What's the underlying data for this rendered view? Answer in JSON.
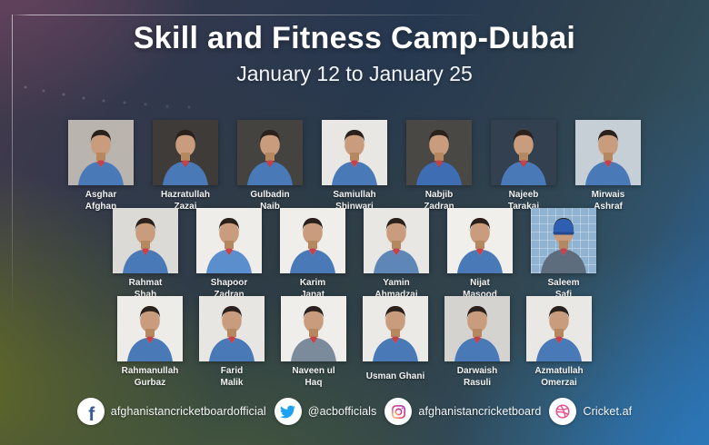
{
  "header": {
    "title": "Skill and Fitness Camp-Dubai",
    "subtitle": "January 12 to January 25"
  },
  "players": {
    "rows": [
      [
        {
          "name_lines": [
            "Asghar",
            "Afghan"
          ],
          "photo_bg": "#b9b4ae",
          "jersey": "#4a79b8"
        },
        {
          "name_lines": [
            "Hazratullah",
            "Zazai"
          ],
          "photo_bg": "#3f3b38",
          "jersey": "#4a79b8"
        },
        {
          "name_lines": [
            "Gulbadin",
            "Naib"
          ],
          "photo_bg": "#454340",
          "jersey": "#4a79b8"
        },
        {
          "name_lines": [
            "Samiullah",
            "Shinwari"
          ],
          "photo_bg": "#e9e7e4",
          "jersey": "#4a79b8"
        },
        {
          "name_lines": [
            "Nabjib",
            "Zadran"
          ],
          "photo_bg": "#4a4845",
          "jersey": "#3f6db4"
        },
        {
          "name_lines": [
            "Najeeb",
            "Tarakai"
          ],
          "photo_bg": "#33404f",
          "jersey": "#4a79b8"
        },
        {
          "name_lines": [
            "Mirwais",
            "Ashraf"
          ],
          "photo_bg": "#c6cfd6",
          "jersey": "#4a79b8"
        }
      ],
      [
        {
          "name_lines": [
            "Rahmat",
            "Shah"
          ],
          "photo_bg": "#dcdad7",
          "jersey": "#4a79b8"
        },
        {
          "name_lines": [
            "Shapoor",
            "Zadran"
          ],
          "photo_bg": "#efedea",
          "jersey": "#5b8ecd"
        },
        {
          "name_lines": [
            "Karim",
            "Janat"
          ],
          "photo_bg": "#f0eeeb",
          "jersey": "#4a79b8"
        },
        {
          "name_lines": [
            "Yamin",
            "Ahmadzai"
          ],
          "photo_bg": "#e9e7e4",
          "jersey": "#5e87b8"
        },
        {
          "name_lines": [
            "Nijat",
            "Masood"
          ],
          "photo_bg": "#f1efeb",
          "jersey": "#4a79b8"
        },
        {
          "name_lines": [
            "Saleem",
            "Safi"
          ],
          "photo_bg": "#8fb3d1",
          "jersey": "#5d6d7d",
          "cap": true,
          "net": true
        }
      ],
      [
        {
          "name_lines": [
            "Rahmanullah",
            "Gurbaz"
          ],
          "photo_bg": "#eeece9",
          "jersey": "#4a79b8"
        },
        {
          "name_lines": [
            "Farid",
            "Malik"
          ],
          "photo_bg": "#e8e6e3",
          "jersey": "#4a79b8"
        },
        {
          "name_lines": [
            "Naveen ul",
            "Haq"
          ],
          "photo_bg": "#f0eeeb",
          "jersey": "#7b8b9c"
        },
        {
          "name_lines": [
            "Usman Ghani"
          ],
          "photo_bg": "#eceae6",
          "jersey": "#4a79b8"
        },
        {
          "name_lines": [
            "Darwaish",
            "Rasuli"
          ],
          "photo_bg": "#d5d3d0",
          "jersey": "#4a79b8"
        },
        {
          "name_lines": [
            "Azmatullah",
            "Omerzai"
          ],
          "photo_bg": "#eae8e4",
          "jersey": "#4a79b8"
        }
      ]
    ]
  },
  "footer": {
    "items": [
      {
        "icon": "facebook-icon",
        "label": "afghanistancricketboardofficial",
        "color": "#3b5998"
      },
      {
        "icon": "twitter-icon",
        "label": "@acbofficials",
        "color": "#1da1f2"
      },
      {
        "icon": "instagram-icon",
        "label": "afghanistancricketboard",
        "gradient": [
          "#fdc468",
          "#ee2a7b",
          "#8a3ab9"
        ]
      },
      {
        "icon": "dribbble-icon",
        "label": "Cricket.af",
        "color": "#ea4c89"
      }
    ]
  },
  "colors": {
    "skin": "#c89c7c",
    "skin_shade": "#b5885f",
    "hair": "#2b211c",
    "collar": "#c4424a",
    "cap": "#2f5fb3",
    "cap_dark": "#24498c",
    "background_navy": "#263850",
    "background_olive": "#5a6420",
    "background_blue": "#2c7abe",
    "background_purple": "#463a4c"
  }
}
